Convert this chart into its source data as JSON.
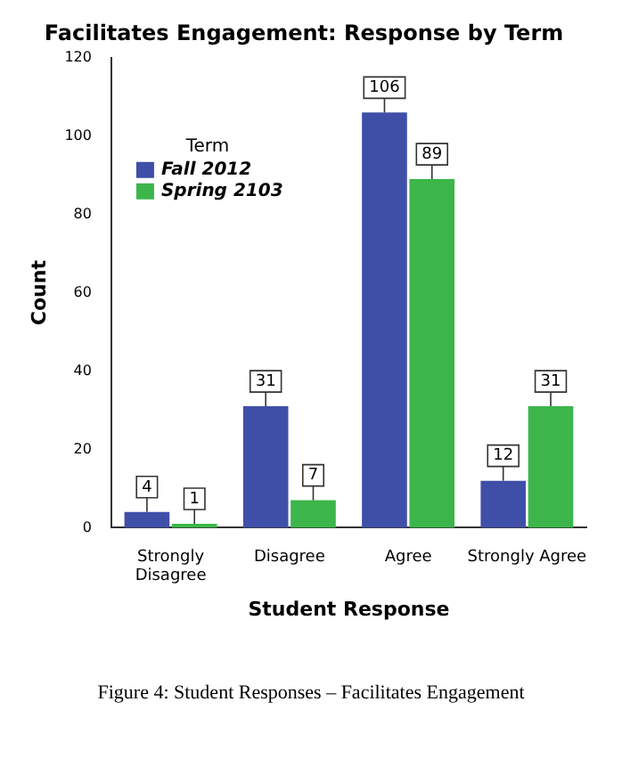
{
  "chart_data": {
    "type": "bar",
    "title": "Facilitates Engagement: Response by Term",
    "xlabel": "Student Response",
    "ylabel": "Count",
    "legend_title": "Term",
    "categories": [
      "Strongly Disagree",
      "Disagree",
      "Agree",
      "Strongly Agree"
    ],
    "series": [
      {
        "name": "Fall 2012",
        "color": "#3f4fa8",
        "values": [
          4,
          31,
          106,
          12
        ]
      },
      {
        "name": "Spring 2103",
        "color": "#3cb64a",
        "values": [
          1,
          7,
          89,
          31
        ]
      }
    ],
    "ylim": [
      0,
      120
    ],
    "yticks": [
      0,
      20,
      40,
      60,
      80,
      100,
      120
    ],
    "grid": false,
    "legend": "top left",
    "data_labels": true,
    "annotations": [
      "Figure 4: Student Responses – Facilitates Engagement"
    ]
  }
}
